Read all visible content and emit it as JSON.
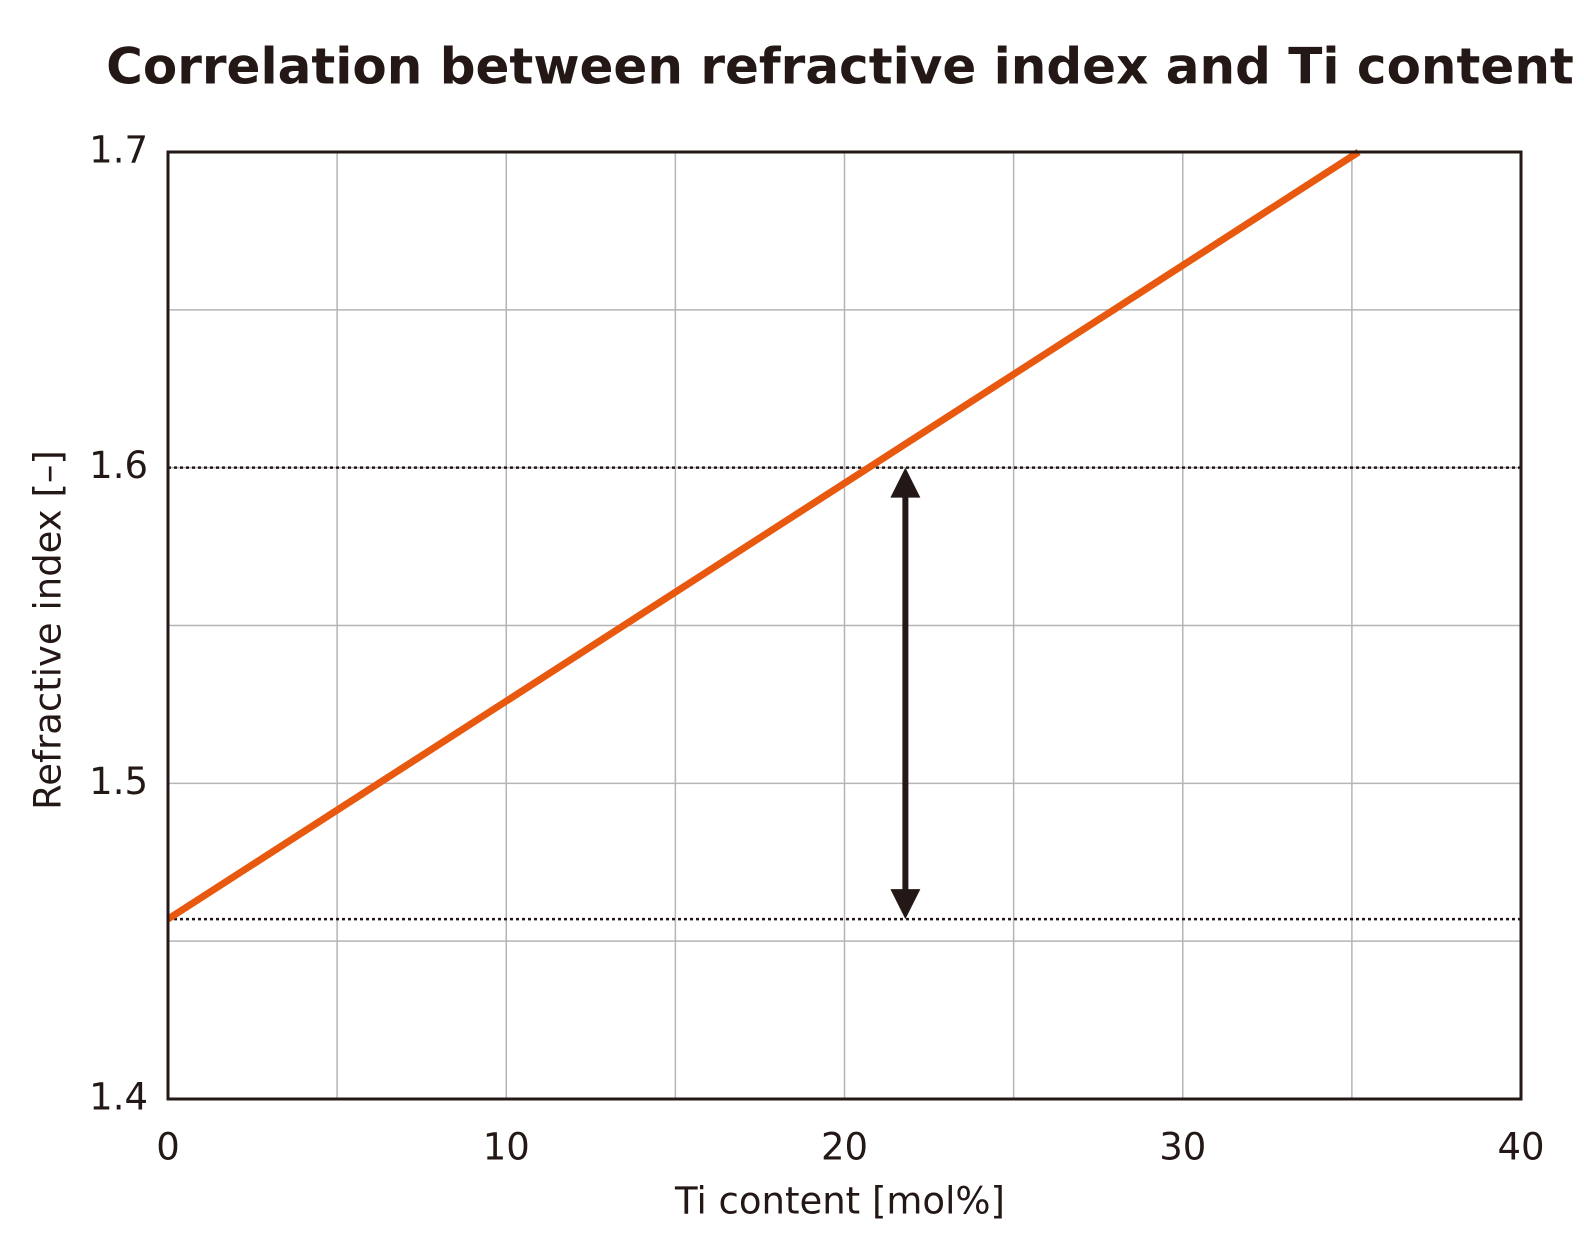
{
  "chart_data": {
    "type": "line",
    "title": "Correlation between refractive index and Ti content",
    "xlabel": "Ti content [mol%]",
    "ylabel": "Refractive index [–]",
    "x": [
      0,
      35.2
    ],
    "series": [
      {
        "color": "#e8580e",
        "values": [
          1.457,
          1.7
        ]
      }
    ],
    "xlim": [
      0,
      40
    ],
    "xticks": [
      0,
      10,
      20,
      30,
      40
    ],
    "ylim": [
      1.4,
      1.7
    ],
    "yticks": [
      1.4,
      1.5,
      1.6,
      1.7
    ],
    "x_grid": [
      5,
      10,
      15,
      20,
      25,
      30,
      35
    ],
    "y_grid": [
      1.45,
      1.5,
      1.55,
      1.6,
      1.65
    ],
    "reference_lines": [
      1.6,
      1.457
    ],
    "arrow": {
      "x": 21.8,
      "y": [
        1.457,
        1.6
      ],
      "color": "#231815"
    },
    "grid": true
  }
}
